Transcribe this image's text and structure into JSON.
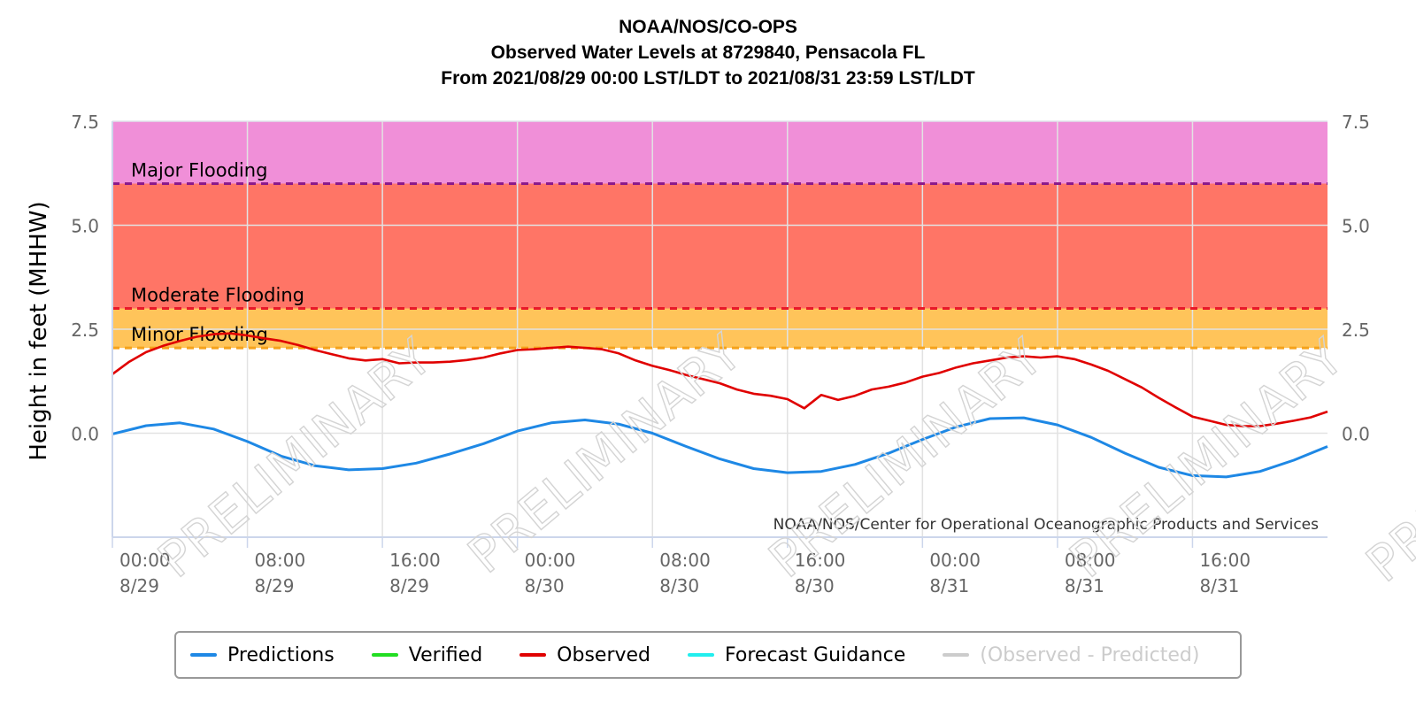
{
  "title_lines": [
    "NOAA/NOS/CO-OPS",
    "Observed Water Levels at 8729840, Pensacola FL",
    "From 2021/08/29 00:00 LST/LDT to 2021/08/31 23:59 LST/LDT"
  ],
  "chart_data": {
    "type": "line",
    "ylabel": "Height in feet (MHHW)",
    "xlim_hours": [
      0,
      72
    ],
    "ylim": [
      -2.5,
      7.5
    ],
    "y_ticks": [
      {
        "value": 7.5,
        "label": "7.5"
      },
      {
        "value": 5.0,
        "label": "5.0"
      },
      {
        "value": 2.5,
        "label": "2.5"
      },
      {
        "value": 0.0,
        "label": "0.0"
      }
    ],
    "x_ticks": [
      {
        "hour": 0,
        "time": "00:00",
        "date": "8/29"
      },
      {
        "hour": 8,
        "time": "08:00",
        "date": "8/29"
      },
      {
        "hour": 16,
        "time": "16:00",
        "date": "8/29"
      },
      {
        "hour": 24,
        "time": "00:00",
        "date": "8/30"
      },
      {
        "hour": 32,
        "time": "08:00",
        "date": "8/30"
      },
      {
        "hour": 40,
        "time": "16:00",
        "date": "8/30"
      },
      {
        "hour": 48,
        "time": "00:00",
        "date": "8/31"
      },
      {
        "hour": 56,
        "time": "08:00",
        "date": "8/31"
      },
      {
        "hour": 64,
        "time": "16:00",
        "date": "8/31"
      }
    ],
    "flood_bands": [
      {
        "label": "",
        "from": 6.0,
        "to": 7.5,
        "color": "#f08fd8"
      },
      {
        "label": "",
        "from": 3.0,
        "to": 6.0,
        "color": "#ff7566"
      },
      {
        "label": "",
        "from": 2.05,
        "to": 3.0,
        "color": "#ffc45a"
      }
    ],
    "thresholds": [
      {
        "label": "Major Flooding",
        "value": 6.0,
        "color": "#8b1a8b"
      },
      {
        "label": "Moderate Flooding",
        "value": 3.0,
        "color": "#e8192a"
      },
      {
        "label": "Minor Flooding",
        "value": 2.05,
        "color": "#f5a21b"
      }
    ],
    "series": [
      {
        "name": "Predictions",
        "color": "#1e88e5",
        "x": [
          0,
          2,
          4,
          6,
          8,
          10,
          12,
          14,
          16,
          18,
          20,
          22,
          24,
          26,
          28,
          30,
          32,
          34,
          36,
          38,
          40,
          42,
          44,
          46,
          48,
          50,
          52,
          54,
          56,
          58,
          60,
          62,
          64,
          66,
          68,
          70,
          72
        ],
        "y": [
          -0.02,
          0.18,
          0.25,
          0.1,
          -0.2,
          -0.55,
          -0.78,
          -0.88,
          -0.85,
          -0.72,
          -0.5,
          -0.25,
          0.05,
          0.25,
          0.32,
          0.22,
          0.0,
          -0.32,
          -0.62,
          -0.85,
          -0.95,
          -0.92,
          -0.75,
          -0.48,
          -0.15,
          0.15,
          0.35,
          0.37,
          0.2,
          -0.1,
          -0.48,
          -0.82,
          -1.02,
          -1.05,
          -0.92,
          -0.65,
          -0.32
        ]
      },
      {
        "name": "Verified",
        "color": "#22dd22",
        "x": [],
        "y": []
      },
      {
        "name": "Observed",
        "color": "#e00000",
        "x": [
          0,
          1,
          2,
          3,
          4,
          5,
          6,
          7,
          8,
          9,
          10,
          11,
          12,
          13,
          14,
          15,
          16,
          17,
          18,
          19,
          20,
          21,
          22,
          23,
          24,
          25,
          26,
          27,
          28,
          29,
          30,
          31,
          32,
          33,
          34,
          35,
          36,
          37,
          38,
          39,
          40,
          41,
          42,
          43,
          44,
          45,
          46,
          47,
          48,
          49,
          50,
          51,
          52,
          53,
          54,
          55,
          56,
          57,
          58,
          59,
          60,
          61,
          62,
          63,
          64,
          65,
          66,
          67,
          68,
          69,
          70,
          71,
          72
        ],
        "y": [
          1.42,
          1.72,
          1.95,
          2.1,
          2.22,
          2.32,
          2.38,
          2.4,
          2.35,
          2.28,
          2.22,
          2.12,
          2.0,
          1.9,
          1.8,
          1.75,
          1.78,
          1.68,
          1.7,
          1.7,
          1.72,
          1.76,
          1.82,
          1.92,
          2.0,
          2.02,
          2.05,
          2.08,
          2.05,
          2.02,
          1.92,
          1.75,
          1.62,
          1.52,
          1.4,
          1.3,
          1.2,
          1.05,
          0.95,
          0.9,
          0.82,
          0.6,
          0.92,
          0.8,
          0.9,
          1.05,
          1.12,
          1.22,
          1.36,
          1.45,
          1.58,
          1.68,
          1.75,
          1.82,
          1.85,
          1.82,
          1.85,
          1.78,
          1.65,
          1.5,
          1.3,
          1.1,
          0.85,
          0.62,
          0.4,
          0.3,
          0.2,
          0.17,
          0.17,
          0.23,
          0.3,
          0.38,
          0.52
        ]
      },
      {
        "name": "Forecast Guidance",
        "color": "#22eeee",
        "x": [],
        "y": []
      }
    ],
    "legend": [
      {
        "name": "Predictions",
        "color": "#1e88e5",
        "muted": false
      },
      {
        "name": "Verified",
        "color": "#22dd22",
        "muted": false
      },
      {
        "name": "Observed",
        "color": "#e00000",
        "muted": false
      },
      {
        "name": "Forecast Guidance",
        "color": "#22eeee",
        "muted": false
      },
      {
        "name": "(Observed - Predicted)",
        "color": "#cccccc",
        "muted": true
      }
    ],
    "legend_position": "bottom",
    "grid": true
  },
  "credit": "NOAA/NOS/Center for Operational Oceanographic Products and Services",
  "watermark": "PRELIMINARY"
}
